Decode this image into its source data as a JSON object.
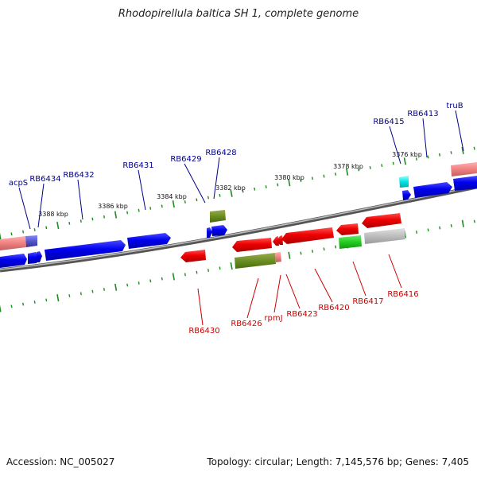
{
  "title": "Rhodopirellula baltica SH 1, complete genome",
  "footer": {
    "accession": "Accession: NC_005027",
    "topology": "Topology: circular; Length: 7,145,576 bp; Genes: 7,405"
  },
  "scale_labels": [
    "3388 kbp",
    "3386 kbp",
    "3384 kbp",
    "3382 kbp",
    "3380 kbp",
    "3378 kbp",
    "3376 kbp"
  ],
  "forward_gene_labels": [
    "acpS",
    "RB6434",
    "RB6432",
    "RB6431",
    "RB6429",
    "RB6428",
    "RB6415",
    "RB6413",
    "truB"
  ],
  "reverse_gene_labels": [
    "RB6430",
    "RB6426",
    "rpmJ",
    "RB6423",
    "RB6420",
    "RB6417",
    "RB6416"
  ],
  "colors": {
    "forward_label": "#00008b",
    "reverse_label": "#cc0000",
    "tick": "#1e8b1e",
    "backbone": "#7a7a7a"
  }
}
